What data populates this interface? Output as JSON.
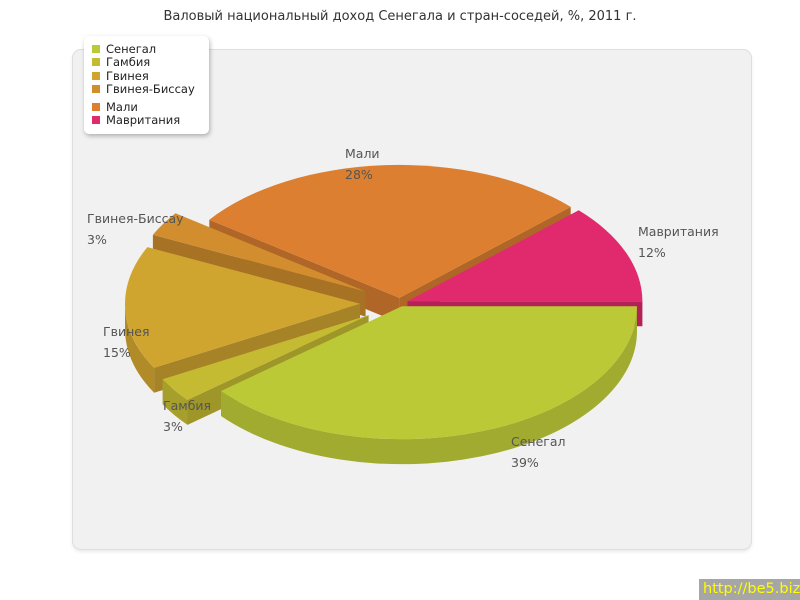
{
  "page": {
    "watermark": "http://be5.biz/"
  },
  "chart_data": {
    "type": "pie",
    "style": "3d-exploded-pie",
    "title": "Валовый национальный доход Сенегала и стран-соседей, %, 2011 г.",
    "unit": "%",
    "year": "2011",
    "legend_position": "top-left",
    "labels": [
      "Сенегал",
      "Гамбия",
      "Гвинея",
      "Гвинея-Биссау",
      "Мали",
      "Мавритания"
    ],
    "values": [
      39,
      3,
      15,
      3,
      28,
      12
    ],
    "percent_labels": [
      "39%",
      "3%",
      "15%",
      "3%",
      "28%",
      "12%"
    ],
    "colors": [
      "#bcc937",
      "#c5bb32",
      "#cfa42f",
      "#d28e2e",
      "#dc7f30",
      "#e02a6d"
    ],
    "exploded": [
      false,
      true,
      true,
      true,
      false,
      false
    ]
  }
}
